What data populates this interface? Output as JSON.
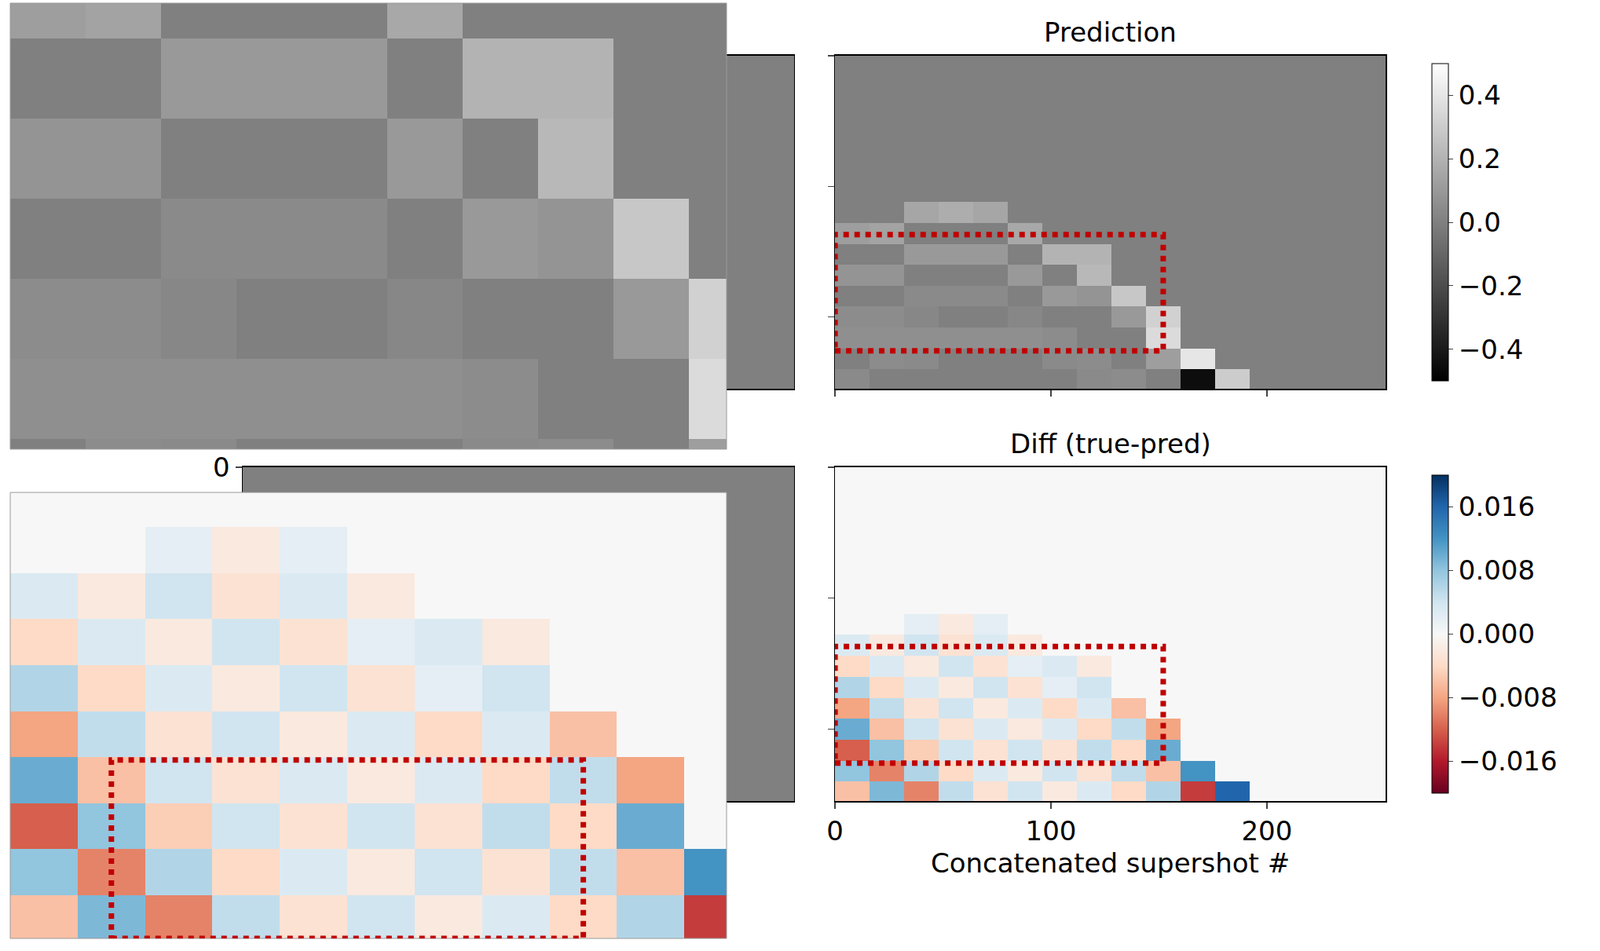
{
  "chart_data": [
    {
      "type": "heatmap",
      "x": [
        0,
        255
      ],
      "y": [
        0,
        255
      ],
      "z": [
        [
          0
        ]
      ],
      "xlim": [
        0,
        255
      ],
      "ylim": [
        255,
        0
      ],
      "color": "gray",
      "zlim": [
        -0.5,
        0.5
      ],
      "tick_labels": false
    },
    {
      "type": "heatmap",
      "x": [
        0,
        255
      ],
      "y": [
        0,
        255
      ],
      "z": [
        [
          0
        ]
      ],
      "xlim": [
        0,
        255
      ],
      "ylim": [
        255,
        0
      ],
      "yticks": [
        0
      ],
      "color": "gray",
      "zlim": [
        -0.5,
        0.5
      ],
      "tick_labels": "y"
    },
    {
      "type": "heatmap",
      "title": "Prediction",
      "x": [
        8,
        24,
        40,
        56,
        72,
        88,
        104,
        120,
        136,
        152,
        168,
        184,
        200,
        216,
        232,
        248
      ],
      "y": [
        8,
        24,
        40,
        56,
        72,
        88,
        104,
        120,
        136,
        152,
        168,
        184,
        200,
        216,
        232,
        248
      ],
      "z": [
        [
          0,
          0,
          0,
          0,
          0,
          0,
          0,
          0,
          0,
          0,
          0,
          0,
          0,
          0,
          0,
          0
        ],
        [
          0,
          0,
          0,
          0,
          0,
          0,
          0,
          0,
          0,
          0,
          0,
          0,
          0,
          0,
          0,
          0
        ],
        [
          0,
          0,
          0,
          0,
          0,
          0,
          0,
          0,
          0,
          0,
          0,
          0,
          0,
          0,
          0,
          0
        ],
        [
          0,
          0,
          0,
          0,
          0,
          0,
          0,
          0,
          0,
          0,
          0,
          0,
          0,
          0,
          0,
          0
        ],
        [
          0,
          0,
          0,
          0,
          0,
          0,
          0,
          0,
          0,
          0,
          0,
          0,
          0,
          0,
          0,
          0
        ],
        [
          0,
          0,
          0,
          0,
          0,
          0,
          0,
          0,
          0,
          0,
          0,
          0,
          0,
          0,
          0,
          0
        ],
        [
          0,
          0,
          0,
          0,
          0,
          0,
          0,
          0,
          0,
          0,
          0,
          0,
          0,
          0,
          0,
          0
        ],
        [
          0,
          0,
          0.15,
          0.18,
          0.15,
          0,
          0,
          0,
          0,
          0,
          0,
          0,
          0,
          0,
          0,
          0
        ],
        [
          0.12,
          0.14,
          0,
          0,
          0,
          0.16,
          0,
          0,
          0,
          0,
          0,
          0,
          0,
          0,
          0,
          0
        ],
        [
          0,
          0,
          0.1,
          0.1,
          0.1,
          0,
          0.2,
          0.2,
          0,
          0,
          0,
          0,
          0,
          0,
          0,
          0
        ],
        [
          0.08,
          0.08,
          0,
          0,
          0,
          0.1,
          0,
          0.22,
          0,
          0,
          0,
          0,
          0,
          0,
          0,
          0
        ],
        [
          0,
          0,
          0.04,
          0.04,
          0.04,
          0,
          0.1,
          0.08,
          0.28,
          0,
          0,
          0,
          0,
          0,
          0,
          0
        ],
        [
          0.05,
          0.05,
          0.03,
          0,
          0,
          0.03,
          0,
          0,
          0.1,
          0.32,
          0,
          0,
          0,
          0,
          0,
          0
        ],
        [
          0.06,
          0.06,
          0.06,
          0.06,
          0.06,
          0.06,
          0.05,
          0,
          0,
          0.36,
          0,
          0,
          0,
          0,
          0,
          0
        ],
        [
          0,
          0.05,
          0.04,
          0,
          0,
          0,
          0.04,
          0.05,
          0,
          0.12,
          0.4,
          0,
          0,
          0,
          0,
          0
        ],
        [
          0.04,
          0,
          0,
          0,
          0,
          0,
          0,
          0.04,
          0.05,
          0,
          -0.45,
          0.3,
          0,
          0,
          0,
          0
        ]
      ],
      "xlim": [
        0,
        255
      ],
      "ylim": [
        255,
        0
      ],
      "xticks": [
        0,
        100,
        200
      ],
      "yticks": [
        0,
        100,
        200
      ],
      "tick_labels": false,
      "color": "gray",
      "zlim": [
        -0.5,
        0.5
      ],
      "zticks": [
        {
          "value": 0.4,
          "label": "0.4"
        },
        {
          "value": 0.2,
          "label": "0.2"
        },
        {
          "value": 0,
          "label": "0.0"
        },
        {
          "value": -0.2,
          "label": "−0.2"
        },
        {
          "value": -0.4,
          "label": "−0.4"
        }
      ],
      "zoom": {
        "xlim": [
          0,
          152
        ],
        "ylim": [
          226,
          137
        ]
      }
    },
    {
      "type": "heatmap",
      "title": "Diff (true-pred)",
      "xlabel": "Concatenated supershot #",
      "x": [
        8,
        24,
        40,
        56,
        72,
        88,
        104,
        120,
        136,
        152,
        168,
        184,
        200,
        216,
        232,
        248
      ],
      "y": [
        8,
        24,
        40,
        56,
        72,
        88,
        104,
        120,
        136,
        152,
        168,
        184,
        200,
        216,
        232,
        248
      ],
      "z": [
        [
          0,
          0,
          0,
          0,
          0,
          0,
          0,
          0,
          0,
          0,
          0,
          0,
          0,
          0,
          0,
          0
        ],
        [
          0,
          0,
          0,
          0,
          0,
          0,
          0,
          0,
          0,
          0,
          0,
          0,
          0,
          0,
          0,
          0
        ],
        [
          0,
          0,
          0,
          0,
          0,
          0,
          0,
          0,
          0,
          0,
          0,
          0,
          0,
          0,
          0,
          0
        ],
        [
          0,
          0,
          0,
          0,
          0,
          0,
          0,
          0,
          0,
          0,
          0,
          0,
          0,
          0,
          0,
          0
        ],
        [
          0,
          0,
          0,
          0,
          0,
          0,
          0,
          0,
          0,
          0,
          0,
          0,
          0,
          0,
          0,
          0
        ],
        [
          0,
          0,
          0,
          0,
          0,
          0,
          0,
          0,
          0,
          0,
          0,
          0,
          0,
          0,
          0,
          0
        ],
        [
          0,
          0,
          0,
          0,
          0,
          0,
          0,
          0,
          0,
          0,
          0,
          0,
          0,
          0,
          0,
          0
        ],
        [
          0,
          0,
          0.002,
          -0.002,
          0.002,
          0,
          0,
          0,
          0,
          0,
          0,
          0,
          0,
          0,
          0,
          0
        ],
        [
          0.003,
          -0.002,
          0.004,
          -0.003,
          0.003,
          -0.002,
          0,
          0,
          0,
          0,
          0,
          0,
          0,
          0,
          0,
          0
        ],
        [
          -0.004,
          0.003,
          -0.002,
          0.004,
          -0.003,
          0.002,
          0.003,
          -0.002,
          0,
          0,
          0,
          0,
          0,
          0,
          0,
          0
        ],
        [
          0.006,
          -0.004,
          0.003,
          -0.002,
          0.004,
          -0.003,
          0.002,
          0.004,
          0,
          0,
          0,
          0,
          0,
          0,
          0,
          0
        ],
        [
          -0.008,
          0.005,
          -0.003,
          0.004,
          -0.002,
          0.003,
          -0.004,
          0.003,
          -0.006,
          0,
          0,
          0,
          0,
          0,
          0,
          0
        ],
        [
          0.01,
          -0.006,
          0.004,
          -0.003,
          0.003,
          -0.002,
          0.003,
          -0.004,
          0.005,
          -0.008,
          0,
          0,
          0,
          0,
          0,
          0
        ],
        [
          -0.012,
          0.008,
          -0.005,
          0.004,
          -0.003,
          0.004,
          -0.003,
          0.005,
          -0.004,
          0.01,
          0,
          0,
          0,
          0,
          0,
          0
        ],
        [
          0.008,
          -0.01,
          0.006,
          -0.004,
          0.003,
          -0.002,
          0.004,
          -0.003,
          0.005,
          -0.006,
          0.012,
          0,
          0,
          0,
          0,
          0
        ],
        [
          -0.006,
          0.009,
          -0.01,
          0.005,
          -0.003,
          0.004,
          -0.002,
          0.003,
          -0.004,
          0.006,
          -0.014,
          0.016,
          0,
          0,
          0,
          0
        ]
      ],
      "xlim": [
        0,
        255
      ],
      "ylim": [
        255,
        0
      ],
      "xticks": [
        0,
        100,
        200
      ],
      "yticks": [
        0,
        100,
        200
      ],
      "tick_labels": "x",
      "color": "RdBu",
      "zlim": [
        -0.02,
        0.02
      ],
      "zticks": [
        {
          "value": 0.016,
          "label": "0.016"
        },
        {
          "value": 0.008,
          "label": "0.008"
        },
        {
          "value": 0,
          "label": "0.000"
        },
        {
          "value": -0.008,
          "label": "−0.008"
        },
        {
          "value": -0.016,
          "label": "−0.016"
        }
      ],
      "zoom": {
        "xlim": [
          0,
          170
        ],
        "ylim": [
          255,
          100
        ]
      },
      "zoom_box": {
        "xlim": [
          24,
          136
        ],
        "ylim": [
          255,
          193
        ]
      },
      "box": {
        "xlim": [
          0,
          152
        ],
        "ylim": [
          226,
          137
        ]
      }
    }
  ]
}
